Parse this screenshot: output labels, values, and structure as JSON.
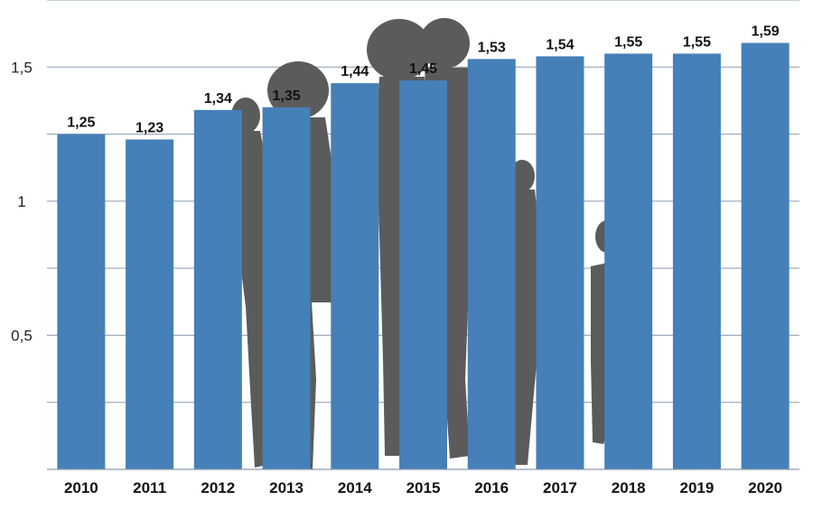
{
  "chart_data": {
    "type": "bar",
    "title": "",
    "xlabel": "",
    "ylabel": "",
    "categories": [
      "2010",
      "2011",
      "2012",
      "2013",
      "2014",
      "2015",
      "2016",
      "2017",
      "2018",
      "2019",
      "2020"
    ],
    "values": [
      1.25,
      1.23,
      1.34,
      1.35,
      1.44,
      1.45,
      1.53,
      1.54,
      1.55,
      1.55,
      1.59
    ],
    "value_labels": [
      "1,25",
      "1,23",
      "1,34",
      "1,35",
      "1,44",
      "1,45",
      "1,53",
      "1,54",
      "1,55",
      "1,55",
      "1,59"
    ],
    "ylim": [
      0,
      1.75
    ],
    "yticks": [
      {
        "value": 0.5,
        "label": "0,5"
      },
      {
        "value": 1,
        "label": "1"
      },
      {
        "value": 1.5,
        "label": "1,5"
      }
    ],
    "gridlines": [
      0.25,
      0.5,
      0.75,
      1,
      1.25,
      1.5,
      1.75
    ],
    "grid": true,
    "legend": "none",
    "bar_color": "#4580b8",
    "background_image": "family-silhouette"
  }
}
